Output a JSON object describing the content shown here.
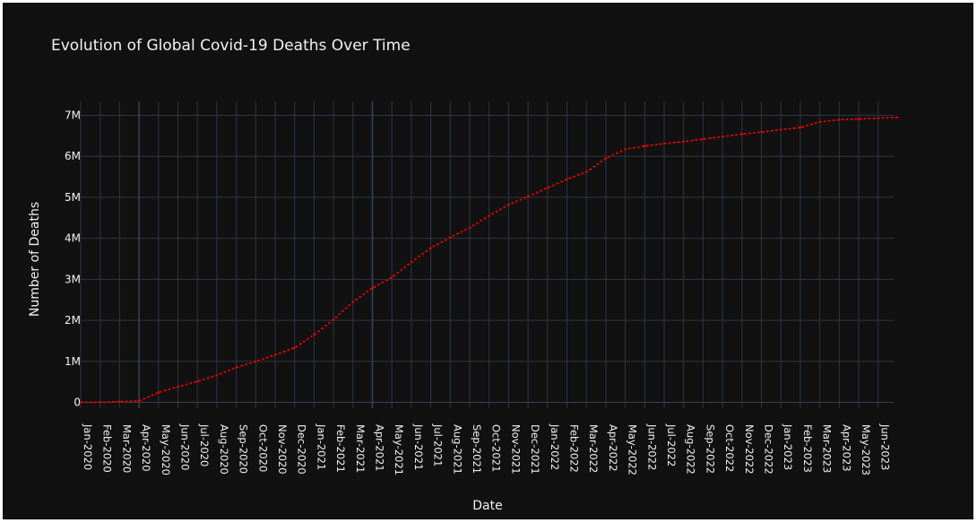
{
  "chart_data": {
    "type": "line",
    "title": "Evolution of Global Covid-19 Deaths Over Time",
    "xlabel": "Date",
    "ylabel": "Number of Deaths",
    "ylim": [
      0,
      7000000
    ],
    "y_ticks": [
      {
        "value": 0,
        "label": "0"
      },
      {
        "value": 1000000,
        "label": "1M"
      },
      {
        "value": 2000000,
        "label": "2M"
      },
      {
        "value": 3000000,
        "label": "3M"
      },
      {
        "value": 4000000,
        "label": "4M"
      },
      {
        "value": 5000000,
        "label": "5M"
      },
      {
        "value": 6000000,
        "label": "6M"
      },
      {
        "value": 7000000,
        "label": "7M"
      }
    ],
    "x_ticks": [
      "Jan-2020",
      "Feb-2020",
      "Mar-2020",
      "Apr-2020",
      "May-2020",
      "Jun-2020",
      "Jul-2020",
      "Aug-2020",
      "Sep-2020",
      "Oct-2020",
      "Nov-2020",
      "Dec-2020",
      "Jan-2021",
      "Feb-2021",
      "Mar-2021",
      "Apr-2021",
      "May-2021",
      "Jun-2021",
      "Jul-2021",
      "Aug-2021",
      "Sep-2021",
      "Oct-2021",
      "Nov-2021",
      "Dec-2021",
      "Jan-2022",
      "Feb-2022",
      "Mar-2022",
      "Apr-2022",
      "May-2022",
      "Jun-2022",
      "Jul-2022",
      "Aug-2022",
      "Sep-2022",
      "Oct-2022",
      "Nov-2022",
      "Dec-2022",
      "Jan-2023",
      "Feb-2023",
      "Mar-2023",
      "Apr-2023",
      "May-2023",
      "Jun-2023"
    ],
    "grid": true,
    "series": [
      {
        "color": "#e00000",
        "line_style": "dotted",
        "x": [
          "Jan-2020",
          "Feb-2020",
          "Mar-2020",
          "Apr-2020",
          "May-2020",
          "Jun-2020",
          "Jul-2020",
          "Aug-2020",
          "Sep-2020",
          "Oct-2020",
          "Nov-2020",
          "Dec-2020",
          "Jan-2021",
          "Feb-2021",
          "Mar-2021",
          "Apr-2021",
          "May-2021",
          "Jun-2021",
          "Jul-2021",
          "Aug-2021",
          "Sep-2021",
          "Oct-2021",
          "Nov-2021",
          "Dec-2021",
          "Jan-2022",
          "Feb-2022",
          "Mar-2022",
          "Apr-2022",
          "May-2022",
          "Jun-2022",
          "Jul-2022",
          "Aug-2022",
          "Sep-2022",
          "Oct-2022",
          "Nov-2022",
          "Dec-2022",
          "Jan-2023",
          "Feb-2023",
          "Mar-2023",
          "Apr-2023",
          "May-2023",
          "Jun-2023",
          "Jul-2023"
        ],
        "values": [
          0,
          2000,
          15000,
          40000,
          240000,
          380000,
          510000,
          660000,
          850000,
          1000000,
          1160000,
          1330000,
          1650000,
          2020000,
          2450000,
          2790000,
          3050000,
          3420000,
          3770000,
          4020000,
          4260000,
          4550000,
          4820000,
          5020000,
          5230000,
          5440000,
          5620000,
          5950000,
          6170000,
          6250000,
          6310000,
          6360000,
          6420000,
          6480000,
          6540000,
          6590000,
          6650000,
          6700000,
          6840000,
          6890000,
          6910000,
          6930000,
          6950000
        ]
      }
    ]
  }
}
